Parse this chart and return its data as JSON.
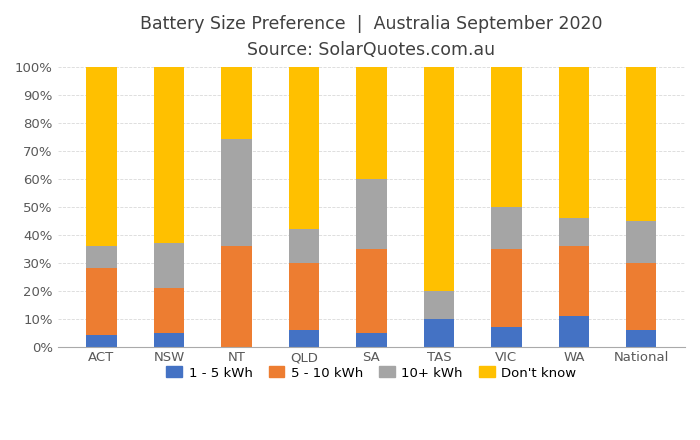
{
  "categories": [
    "ACT",
    "NSW",
    "NT",
    "QLD",
    "SA",
    "TAS",
    "VIC",
    "WA",
    "National"
  ],
  "series": {
    "1 - 5 kWh": [
      4,
      5,
      0,
      6,
      5,
      10,
      7,
      11,
      6
    ],
    "5 - 10 kWh": [
      24,
      16,
      36,
      24,
      30,
      0,
      28,
      25,
      24
    ],
    "10+ kWh": [
      8,
      16,
      38,
      12,
      25,
      10,
      15,
      10,
      15
    ],
    "Don't know": [
      64,
      63,
      26,
      58,
      40,
      80,
      50,
      54,
      55
    ]
  },
  "colors": {
    "1 - 5 kWh": "#4472C4",
    "5 - 10 kWh": "#ED7D31",
    "10+ kWh": "#A5A5A5",
    "Don't know": "#FFC000"
  },
  "title_line1": "Battery Size Preference  |  Australia September 2020",
  "title_line2": "Source: SolarQuotes.com.au",
  "ylim": [
    0,
    100
  ],
  "yticks": [
    0,
    10,
    20,
    30,
    40,
    50,
    60,
    70,
    80,
    90,
    100
  ],
  "ytick_labels": [
    "0%",
    "10%",
    "20%",
    "30%",
    "40%",
    "50%",
    "60%",
    "70%",
    "80%",
    "90%",
    "100%"
  ],
  "legend_order": [
    "1 - 5 kWh",
    "5 - 10 kWh",
    "10+ kWh",
    "Don't know"
  ],
  "background_color": "#FFFFFF",
  "grid_color": "#D9D9D9",
  "title_fontsize": 12.5,
  "subtitle_fontsize": 11.5,
  "tick_fontsize": 9.5,
  "legend_fontsize": 9.5,
  "bar_width": 0.45
}
